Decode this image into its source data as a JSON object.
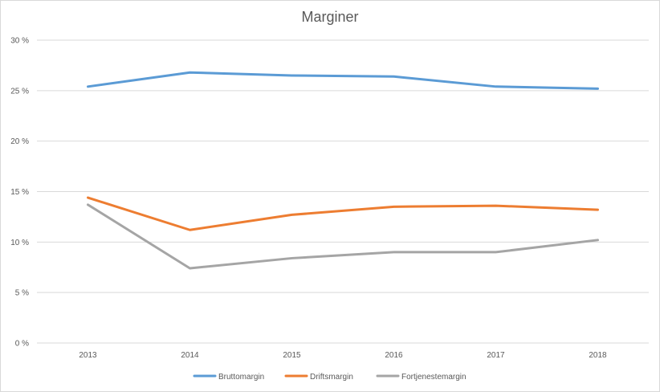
{
  "chart_data": {
    "type": "line",
    "title": "Marginer",
    "xlabel": "",
    "ylabel": "",
    "categories": [
      "2013",
      "2014",
      "2015",
      "2016",
      "2017",
      "2018"
    ],
    "ylim": [
      0,
      30
    ],
    "yticks": [
      0,
      5,
      10,
      15,
      20,
      25,
      30
    ],
    "ytick_labels": [
      "0 %",
      "5 %",
      "10 %",
      "15 %",
      "20 %",
      "25 %",
      "30 %"
    ],
    "grid": true,
    "legend_position": "bottom",
    "series": [
      {
        "name": "Bruttomargin",
        "color": "#5b9bd5",
        "values": [
          25.4,
          26.8,
          26.5,
          26.4,
          25.4,
          25.2
        ]
      },
      {
        "name": "Driftsmargin",
        "color": "#ed7d31",
        "values": [
          14.4,
          11.2,
          12.7,
          13.5,
          13.6,
          13.2
        ]
      },
      {
        "name": "Fortjenestemargin",
        "color": "#a5a5a5",
        "values": [
          13.7,
          7.4,
          8.4,
          9.0,
          9.0,
          10.2
        ]
      }
    ]
  }
}
